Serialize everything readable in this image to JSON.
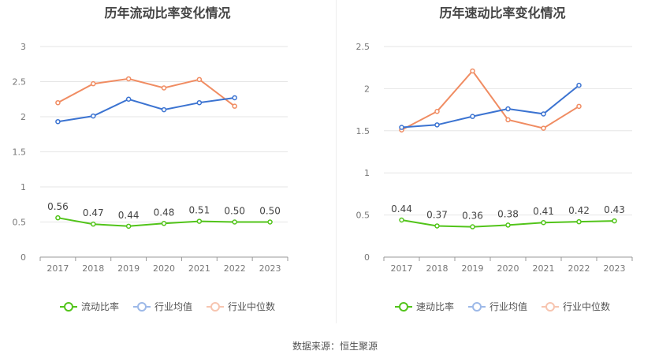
{
  "colors": {
    "main": "#52c41a",
    "industry_avg": "#3b73d1",
    "industry_median": "#f08c62"
  },
  "source_text": "数据来源：恒生聚源",
  "chart_data": [
    {
      "type": "line",
      "title": "历年流动比率变化情况",
      "xlabel": "",
      "ylabel": "",
      "categories": [
        "2017",
        "2018",
        "2019",
        "2020",
        "2021",
        "2022",
        "2023"
      ],
      "ylim": [
        0,
        3
      ],
      "yticks": [
        "0",
        "0.5",
        "1",
        "1.5",
        "2",
        "2.5",
        "3"
      ],
      "grid": true,
      "legend_position": "bottom",
      "series": [
        {
          "name": "流动比率",
          "color": "#52c41a",
          "values": [
            0.56,
            0.47,
            0.44,
            0.48,
            0.51,
            0.5,
            0.5
          ],
          "labels": [
            "0.56",
            "0.47",
            "0.44",
            "0.48",
            "0.51",
            "0.50",
            "0.50"
          ]
        },
        {
          "name": "行业均值",
          "color": "#3b73d1",
          "values": [
            1.93,
            2.01,
            2.25,
            2.1,
            2.2,
            2.27,
            null
          ]
        },
        {
          "name": "行业中位数",
          "color": "#f08c62",
          "values": [
            2.2,
            2.47,
            2.54,
            2.41,
            2.53,
            2.15,
            null
          ]
        }
      ]
    },
    {
      "type": "line",
      "title": "历年速动比率变化情况",
      "xlabel": "",
      "ylabel": "",
      "categories": [
        "2017",
        "2018",
        "2019",
        "2020",
        "2021",
        "2022",
        "2023"
      ],
      "ylim": [
        0,
        2.5
      ],
      "yticks": [
        "0",
        "0.5",
        "1",
        "1.5",
        "2",
        "2.5"
      ],
      "grid": true,
      "legend_position": "bottom",
      "series": [
        {
          "name": "速动比率",
          "color": "#52c41a",
          "values": [
            0.44,
            0.37,
            0.36,
            0.38,
            0.41,
            0.42,
            0.43
          ],
          "labels": [
            "0.44",
            "0.37",
            "0.36",
            "0.38",
            "0.41",
            "0.42",
            "0.43"
          ]
        },
        {
          "name": "行业均值",
          "color": "#3b73d1",
          "values": [
            1.54,
            1.57,
            1.67,
            1.76,
            1.7,
            2.04,
            null
          ]
        },
        {
          "name": "行业中位数",
          "color": "#f08c62",
          "values": [
            1.51,
            1.73,
            2.21,
            1.63,
            1.53,
            1.79,
            null
          ]
        }
      ]
    }
  ]
}
